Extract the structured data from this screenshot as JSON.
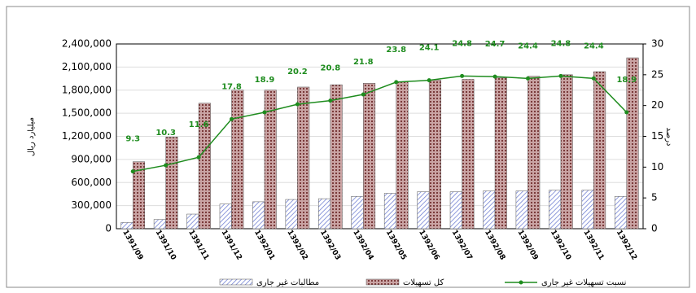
{
  "chart_data": {
    "type": "bar-line",
    "y_label": "میلیارد ریال",
    "y2_label": "درصد",
    "categories": [
      "1391/09",
      "1391/10",
      "1391/11",
      "1391/12",
      "1392/01",
      "1392/02",
      "1392/03",
      "1392/04",
      "1392/05",
      "1392/06",
      "1392/07",
      "1392/08",
      "1392/09",
      "1392/10",
      "1392/11",
      "1392/12"
    ],
    "series": [
      {
        "name": "مطالبات غیر جاری",
        "color": "#9aa6e0",
        "values": [
          80000,
          120000,
          190000,
          320000,
          350000,
          380000,
          390000,
          420000,
          460000,
          480000,
          480000,
          490000,
          490000,
          500000,
          500000,
          420000
        ]
      },
      {
        "name": "کل تسهیلات",
        "color": "#b07a7a",
        "values": [
          870000,
          1190000,
          1630000,
          1800000,
          1800000,
          1840000,
          1870000,
          1890000,
          1910000,
          1930000,
          1940000,
          1960000,
          1980000,
          2000000,
          2040000,
          2220000
        ]
      },
      {
        "name": "نسبت تسهیلات غیر جاری",
        "color": "#1e8c1e",
        "axis": "y2",
        "values": [
          9.3,
          10.3,
          11.6,
          17.8,
          18.9,
          20.2,
          20.8,
          21.8,
          23.8,
          24.1,
          24.8,
          24.7,
          24.4,
          24.8,
          24.4,
          18.9
        ]
      }
    ],
    "ylim": [
      0,
      2400000
    ],
    "yticks": [
      {
        "value": 0,
        "label": "0"
      },
      {
        "value": 300000,
        "label": "300,000"
      },
      {
        "value": 600000,
        "label": "600,000"
      },
      {
        "value": 900000,
        "label": "900,000"
      },
      {
        "value": 1200000,
        "label": "1,200,000"
      },
      {
        "value": 1500000,
        "label": "1,500,000"
      },
      {
        "value": 1800000,
        "label": "1,800,000"
      },
      {
        "value": 2100000,
        "label": "2,100,000"
      },
      {
        "value": 2400000,
        "label": "2,400,000"
      }
    ],
    "y2lim": [
      0,
      30
    ],
    "y2ticks": [
      0,
      5,
      10,
      15,
      20,
      25,
      30
    ],
    "grid": true
  }
}
